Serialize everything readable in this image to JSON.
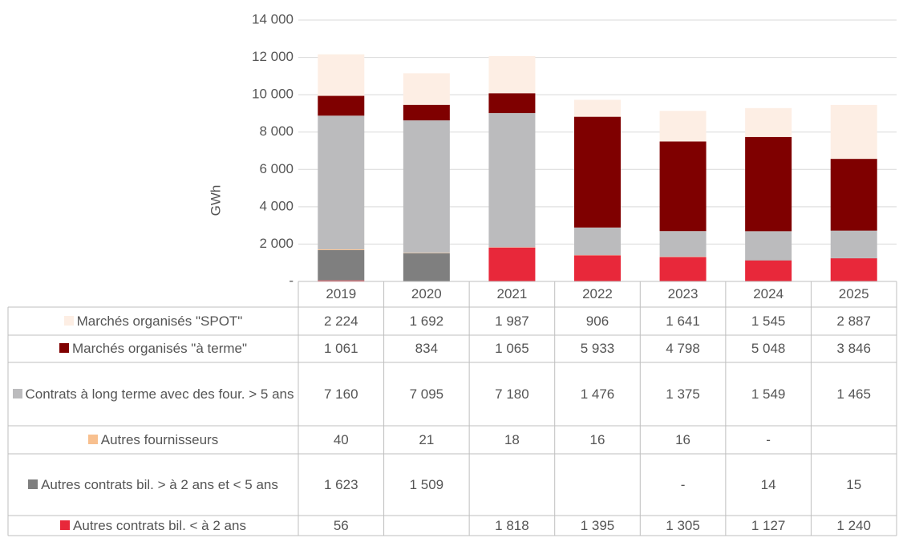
{
  "chart_data": {
    "type": "stacked_bar",
    "y_label": "GWh",
    "categories": [
      "2019",
      "2020",
      "2021",
      "2022",
      "2023",
      "2024",
      "2025"
    ],
    "ylim": [
      0,
      14000
    ],
    "yticks": [
      {
        "value": 0,
        "label": "-"
      },
      {
        "value": 2000,
        "label": "2 000"
      },
      {
        "value": 4000,
        "label": "4 000"
      },
      {
        "value": 6000,
        "label": "6 000"
      },
      {
        "value": 8000,
        "label": "8 000"
      },
      {
        "value": 10000,
        "label": "10 000"
      },
      {
        "value": 12000,
        "label": "12 000"
      },
      {
        "value": 14000,
        "label": "14 000"
      }
    ],
    "grid": true,
    "series": [
      {
        "name": "Marchés organisés \"SPOT\"",
        "color": "#fdeee4",
        "values": [
          2224,
          1692,
          1987,
          906,
          1641,
          1545,
          2887
        ],
        "value_labels": [
          "2 224",
          "1 692",
          "1 987",
          "906",
          "1 641",
          "1 545",
          "2 887"
        ]
      },
      {
        "name": "Marchés organisés \"à terme\"",
        "color": "#7f0000",
        "values": [
          1061,
          834,
          1065,
          5933,
          4798,
          5048,
          3846
        ],
        "value_labels": [
          "1 061",
          "834",
          "1 065",
          "5 933",
          "4 798",
          "5 048",
          "3 846"
        ]
      },
      {
        "name": "Contrats à long terme avec des four. > 5 ans",
        "color": "#bbbbbd",
        "values": [
          7160,
          7095,
          7180,
          1476,
          1375,
          1549,
          1465
        ],
        "value_labels": [
          "7 160",
          "7 095",
          "7 180",
          "1 476",
          "1 375",
          "1 549",
          "1 465"
        ]
      },
      {
        "name": "Autres fournisseurs",
        "color": "#f8c08f",
        "values": [
          40,
          21,
          18,
          16,
          16,
          0,
          null
        ],
        "value_labels": [
          "40",
          "21",
          "18",
          "16",
          "16",
          "-",
          null
        ]
      },
      {
        "name": "Autres contrats bil.  > à 2 ans et < 5 ans",
        "color": "#7f7f7f",
        "values": [
          1623,
          1509,
          null,
          null,
          0,
          14,
          15
        ],
        "value_labels": [
          "1 623",
          "1 509",
          null,
          null,
          "-",
          "14",
          "15"
        ]
      },
      {
        "name": "Autres contrats bil.  < à 2 ans",
        "color": "#e8283a",
        "values": [
          56,
          null,
          1818,
          1395,
          1305,
          1127,
          1240
        ],
        "value_labels": [
          "56",
          null,
          "1 818",
          "1 395",
          "1 305",
          "1 127",
          "1 240"
        ]
      }
    ]
  }
}
